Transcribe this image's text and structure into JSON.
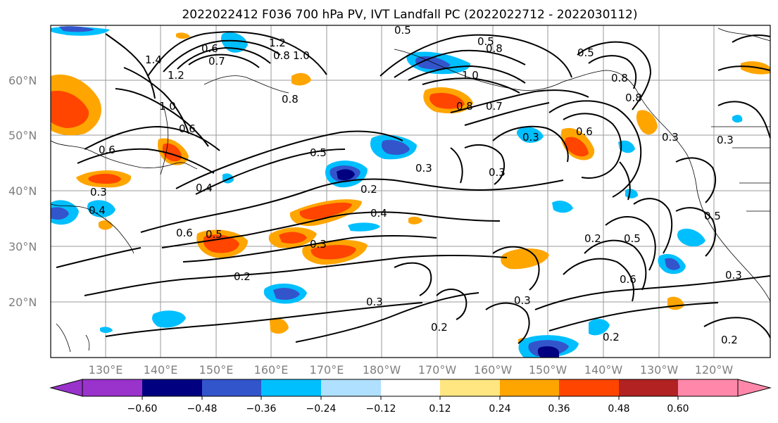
{
  "title": "2022022412 F036 700 hPa PV, IVT Landfall PC (2022022712 - 2022030112)",
  "lat_labels": [
    "60°N",
    "50°N",
    "40°N",
    "30°N",
    "20°N"
  ],
  "lon_labels": [
    "130°E",
    "140°E",
    "150°E",
    "160°E",
    "170°E",
    "180°W",
    "170°W",
    "160°W",
    "150°W",
    "140°W",
    "130°W",
    "120°W"
  ],
  "colorbar": {
    "ticks": [
      "−0.60",
      "−0.48",
      "−0.36",
      "−0.24",
      "−0.12",
      "0.12",
      "0.24",
      "0.36",
      "0.48",
      "0.60"
    ],
    "colors": [
      "#9933cc",
      "#000080",
      "#3355cc",
      "#00bfff",
      "#b0e0ff",
      "#ffffff",
      "#ffe680",
      "#ffa500",
      "#ff4500",
      "#b22222",
      "#ff88aa"
    ]
  },
  "contour_labels": [
    "1.2",
    "0.5",
    "0.8",
    "1.0",
    "0.6",
    "0.7",
    "1.4",
    "1.2",
    "0.8",
    "1.0",
    "0.5",
    "0.8",
    "1.0",
    "0.8",
    "0.7",
    "0.6",
    "0.5",
    "0.8",
    "0.6",
    "0.5",
    "0.3",
    "0.3",
    "0.6",
    "0.3",
    "0.3",
    "0.8",
    "0.3",
    "0.4",
    "0.2",
    "0.3",
    "0.4",
    "0.4",
    "0.5",
    "0.5",
    "0.6",
    "0.3",
    "0.2",
    "0.2",
    "0.5",
    "0.6",
    "0.3",
    "0.3",
    "0.3",
    "0.2",
    "0.2",
    "0.2"
  ]
}
